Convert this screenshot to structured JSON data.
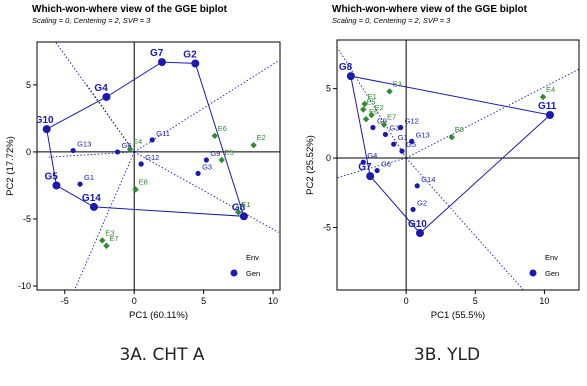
{
  "colors": {
    "gen": "#1a1ab0",
    "env": "#2e8b2e",
    "axis": "#000000",
    "hull": "#1a1ab0",
    "divider": "#1a1ab0"
  },
  "chart_data": [
    {
      "type": "scatter",
      "title": "Which-won-where view of the GGE biplot",
      "subtitle": "Scaling = 0, Centering = 2, SVP = 3",
      "xlabel": "PC1 (60.11%)",
      "ylabel": "PC2 (17.72%)",
      "xlim": [
        -7,
        10.5
      ],
      "ylim": [
        -10.3,
        8.2
      ],
      "xticks": [
        -5,
        0,
        5,
        10
      ],
      "yticks": [
        -10,
        -5,
        0,
        5
      ],
      "caption": "3A. CHT A",
      "legend": {
        "position": "bottom-right",
        "items": [
          "Env",
          "Gen"
        ]
      },
      "series": [
        {
          "name": "Gen",
          "points": [
            {
              "label": "G1",
              "x": -3.9,
              "y": -2.4
            },
            {
              "label": "G2",
              "x": 4.4,
              "y": 6.6
            },
            {
              "label": "G3",
              "x": 4.6,
              "y": -1.6
            },
            {
              "label": "G5",
              "x": -5.6,
              "y": -2.5
            },
            {
              "label": "G6",
              "x": -1.2,
              "y": 0.0
            },
            {
              "label": "G7",
              "x": 2.0,
              "y": 6.7
            },
            {
              "label": "G8",
              "x": 7.9,
              "y": -4.8
            },
            {
              "label": "G9",
              "x": 5.2,
              "y": -0.6
            },
            {
              "label": "G10",
              "x": -6.3,
              "y": 1.7
            },
            {
              "label": "G11",
              "x": 1.3,
              "y": 0.9
            },
            {
              "label": "G12",
              "x": 0.5,
              "y": -0.9
            },
            {
              "label": "G13",
              "x": -4.4,
              "y": 0.1
            },
            {
              "label": "G14",
              "x": -2.9,
              "y": -4.1
            },
            {
              "label": "G4",
              "x": -2.0,
              "y": 4.1
            }
          ]
        },
        {
          "name": "Env",
          "points": [
            {
              "label": "E1",
              "x": 7.5,
              "y": -4.5
            },
            {
              "label": "E2",
              "x": 8.6,
              "y": 0.5
            },
            {
              "label": "E3",
              "x": -2.3,
              "y": -6.6
            },
            {
              "label": "E4",
              "x": -0.3,
              "y": 0.2
            },
            {
              "label": "E5",
              "x": 6.3,
              "y": -0.6
            },
            {
              "label": "E6",
              "x": 5.8,
              "y": 1.2
            },
            {
              "label": "E7",
              "x": -2.0,
              "y": -7.0
            },
            {
              "label": "E8",
              "x": 0.1,
              "y": -2.8
            }
          ]
        }
      ],
      "hull": [
        "G10",
        "G4",
        "G7",
        "G2",
        "G8",
        "G14",
        "G5",
        "G10"
      ],
      "dividers": [
        [
          -8.5,
          12.3
        ],
        [
          -6.3,
          -0.4
        ],
        [
          -3.4,
          5.0
        ],
        [
          10.4,
          6.8
        ],
        [
          10.4,
          -6.0
        ],
        [
          -4.3,
          -10.3
        ]
      ]
    },
    {
      "type": "scatter",
      "title": "Which-won-where view of the GGE biplot",
      "subtitle": "Scaling = 0, Centering = 2, SVP = 3",
      "xlabel": "PC1 (55.5%)",
      "ylabel": "PC2 (25.52%)",
      "xlim": [
        -5,
        12.5
      ],
      "ylim": [
        -9.5,
        8.5
      ],
      "xticks": [
        0,
        5,
        10
      ],
      "yticks": [
        -5,
        0,
        5
      ],
      "caption": "3B. YLD",
      "legend": {
        "position": "bottom-right",
        "items": [
          "Env",
          "Gen"
        ]
      },
      "series": [
        {
          "name": "Gen",
          "points": [
            {
              "label": "G1",
              "x": -0.9,
              "y": 1.0
            },
            {
              "label": "G2",
              "x": 0.5,
              "y": -3.7
            },
            {
              "label": "G3",
              "x": -1.5,
              "y": 1.7
            },
            {
              "label": "G4",
              "x": -3.1,
              "y": -0.3
            },
            {
              "label": "G5",
              "x": -0.3,
              "y": 0.5
            },
            {
              "label": "G6",
              "x": -2.1,
              "y": -0.9
            },
            {
              "label": "G7",
              "x": -2.6,
              "y": -1.3
            },
            {
              "label": "G8",
              "x": -4.0,
              "y": 5.9
            },
            {
              "label": "G9",
              "x": -2.4,
              "y": 2.2
            },
            {
              "label": "G10",
              "x": 1.0,
              "y": -5.4
            },
            {
              "label": "G11",
              "x": 10.4,
              "y": 3.1
            },
            {
              "label": "G12",
              "x": -0.4,
              "y": 2.2
            },
            {
              "label": "G13",
              "x": 0.4,
              "y": 1.2
            },
            {
              "label": "G14",
              "x": 0.8,
              "y": -2.0
            }
          ]
        },
        {
          "name": "Env",
          "points": [
            {
              "label": "E1",
              "x": -3.0,
              "y": 3.9
            },
            {
              "label": "E2",
              "x": -2.5,
              "y": 3.1
            },
            {
              "label": "E3",
              "x": -1.2,
              "y": 4.8
            },
            {
              "label": "E4",
              "x": 9.9,
              "y": 4.4
            },
            {
              "label": "E5",
              "x": -3.1,
              "y": 3.5
            },
            {
              "label": "E6",
              "x": -2.9,
              "y": 2.8
            },
            {
              "label": "E7",
              "x": -1.6,
              "y": 2.4
            },
            {
              "label": "E8",
              "x": 3.3,
              "y": 1.5
            }
          ]
        }
      ],
      "hull": [
        "G8",
        "G11",
        "G10",
        "G7",
        "G8"
      ],
      "dividers": [
        [
          -8.5,
          13.6
        ],
        [
          12.5,
          6.4
        ],
        [
          12.5,
          -14.0
        ],
        [
          -7.8,
          -2.2
        ]
      ]
    }
  ]
}
